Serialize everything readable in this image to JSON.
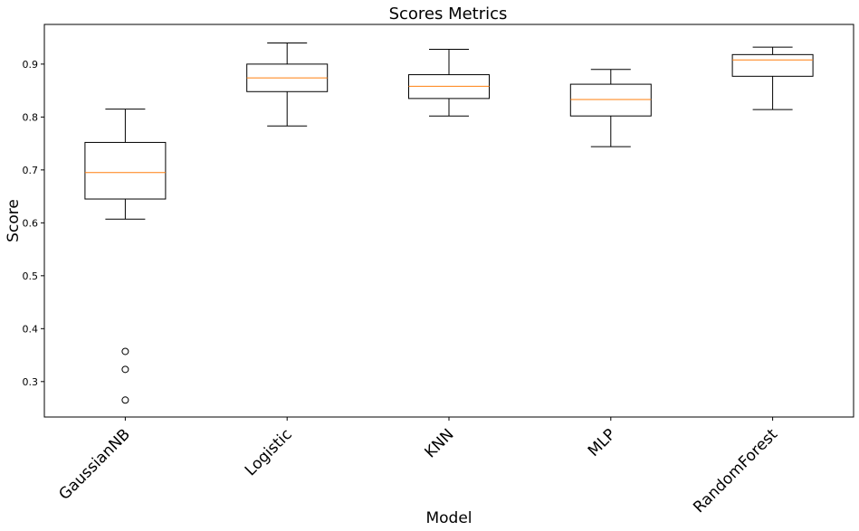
{
  "chart_data": {
    "type": "boxplot",
    "title": "Scores Metrics",
    "xlabel": "Model",
    "ylabel": "Score",
    "ylim": [
      0.233,
      0.975
    ],
    "yticks": [
      0.3,
      0.4,
      0.5,
      0.6,
      0.7,
      0.8,
      0.9
    ],
    "ytick_labels": [
      "0.3",
      "0.4",
      "0.5",
      "0.6",
      "0.7",
      "0.8",
      "0.9"
    ],
    "grid": false,
    "categories": [
      "GaussianNB",
      "Logistic",
      "KNN",
      "MLP",
      "RandomForest"
    ],
    "boxes": [
      {
        "min": 0.607,
        "q1": 0.645,
        "median": 0.695,
        "q3": 0.752,
        "max": 0.815,
        "outliers": [
          0.357,
          0.323,
          0.265
        ]
      },
      {
        "min": 0.783,
        "q1": 0.848,
        "median": 0.874,
        "q3": 0.9,
        "max": 0.94,
        "outliers": []
      },
      {
        "min": 0.802,
        "q1": 0.835,
        "median": 0.858,
        "q3": 0.88,
        "max": 0.928,
        "outliers": []
      },
      {
        "min": 0.744,
        "q1": 0.802,
        "median": 0.833,
        "q3": 0.862,
        "max": 0.89,
        "outliers": []
      },
      {
        "min": 0.814,
        "q1": 0.877,
        "median": 0.908,
        "q3": 0.918,
        "max": 0.932,
        "outliers": []
      }
    ],
    "colors": {
      "box": "#000000",
      "median": "#ff7f0e",
      "background": "#ffffff"
    }
  }
}
